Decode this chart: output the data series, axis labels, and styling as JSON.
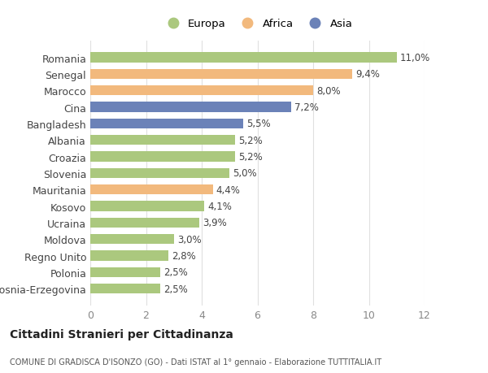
{
  "countries": [
    "Romania",
    "Senegal",
    "Marocco",
    "Cina",
    "Bangladesh",
    "Albania",
    "Croazia",
    "Slovenia",
    "Mauritania",
    "Kosovo",
    "Ucraina",
    "Moldova",
    "Regno Unito",
    "Polonia",
    "Bosnia-Erzegovina"
  ],
  "values": [
    11.0,
    9.4,
    8.0,
    7.2,
    5.5,
    5.2,
    5.2,
    5.0,
    4.4,
    4.1,
    3.9,
    3.0,
    2.8,
    2.5,
    2.5
  ],
  "labels": [
    "11,0%",
    "9,4%",
    "8,0%",
    "7,2%",
    "5,5%",
    "5,2%",
    "5,2%",
    "5,0%",
    "4,4%",
    "4,1%",
    "3,9%",
    "3,0%",
    "2,8%",
    "2,5%",
    "2,5%"
  ],
  "continents": [
    "Europa",
    "Africa",
    "Africa",
    "Asia",
    "Asia",
    "Europa",
    "Europa",
    "Europa",
    "Africa",
    "Europa",
    "Europa",
    "Europa",
    "Europa",
    "Europa",
    "Europa"
  ],
  "colors": {
    "Europa": "#abc87e",
    "Africa": "#f2b97d",
    "Asia": "#6b82b8"
  },
  "xlim": [
    0,
    12
  ],
  "xticks": [
    0,
    2,
    4,
    6,
    8,
    10,
    12
  ],
  "title": "Cittadini Stranieri per Cittadinanza",
  "subtitle": "COMUNE DI GRADISCA D'ISONZO (GO) - Dati ISTAT al 1° gennaio - Elaborazione TUTTITALIA.IT",
  "background_color": "#ffffff",
  "plot_bg_color": "#ffffff",
  "grid_color": "#e0e0e0",
  "label_fontsize": 8.5,
  "ytick_fontsize": 9,
  "xtick_fontsize": 9
}
